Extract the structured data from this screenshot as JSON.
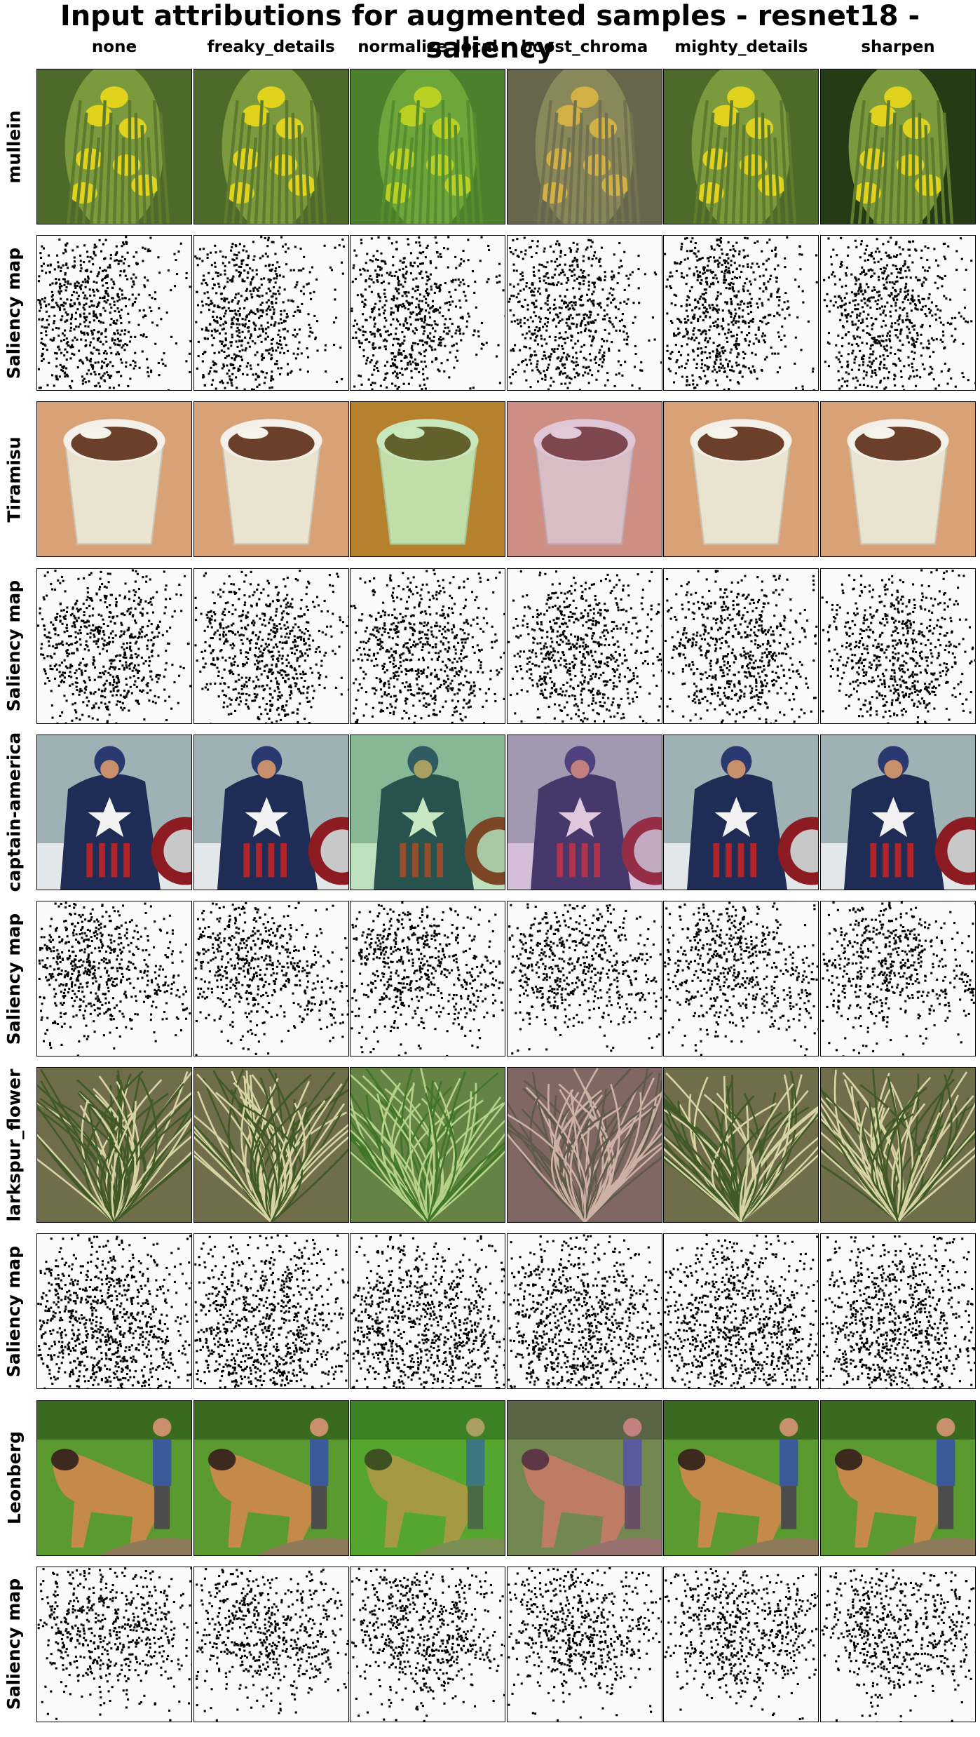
{
  "title": "Input attributions for augmented samples - resnet18 - saliency",
  "columns": [
    "none",
    "freaky_details",
    "normalize_local",
    "boost_chroma",
    "mighty_details",
    "sharpen"
  ],
  "rows": [
    {
      "label": "mullein",
      "kind": "image",
      "subject": "mullein"
    },
    {
      "label": "Saliency map",
      "kind": "saliency",
      "subject": "mullein"
    },
    {
      "label": "Tiramisu",
      "kind": "image",
      "subject": "tiramisu"
    },
    {
      "label": "Saliency map",
      "kind": "saliency",
      "subject": "tiramisu"
    },
    {
      "label": "captain-america",
      "kind": "image",
      "subject": "captain"
    },
    {
      "label": "Saliency map",
      "kind": "saliency",
      "subject": "captain"
    },
    {
      "label": "larkspur_flower",
      "kind": "image",
      "subject": "grass"
    },
    {
      "label": "Saliency map",
      "kind": "saliency",
      "subject": "grass"
    },
    {
      "label": "Leonberg",
      "kind": "image",
      "subject": "dog"
    },
    {
      "label": "Saliency map",
      "kind": "saliency",
      "subject": "dog"
    }
  ],
  "augment_tints": {
    "none": "#000000",
    "freaky_details": "#000000",
    "normalize_local": "#39a82a",
    "boost_chroma": "#b05aa8",
    "mighty_details": "#000000",
    "sharpen": "#000000"
  }
}
